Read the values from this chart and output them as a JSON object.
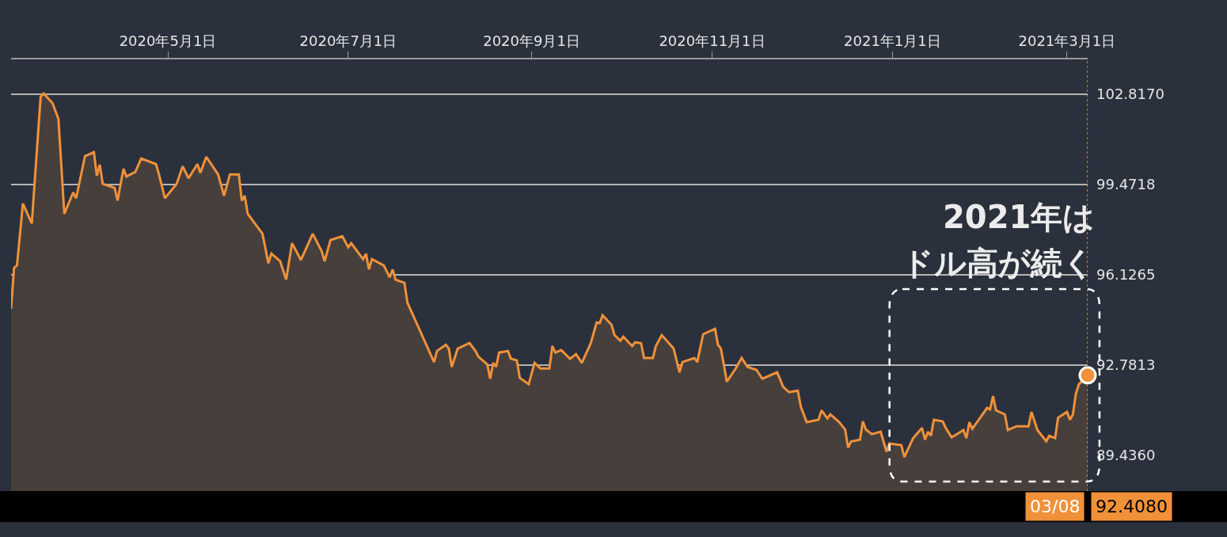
{
  "chart_data": {
    "type": "area",
    "x": [
      "2020-03-09",
      "2020-03-10",
      "2020-03-11",
      "2020-03-13",
      "2020-03-16",
      "2020-03-19",
      "2020-03-20",
      "2020-03-23",
      "2020-03-25",
      "2020-03-27",
      "2020-03-30",
      "2020-03-31",
      "2020-04-03",
      "2020-04-06",
      "2020-04-07",
      "2020-04-08",
      "2020-04-09",
      "2020-04-13",
      "2020-04-14",
      "2020-04-16",
      "2020-04-17",
      "2020-04-20",
      "2020-04-22",
      "2020-04-27",
      "2020-04-28",
      "2020-04-30",
      "2020-05-04",
      "2020-05-06",
      "2020-05-08",
      "2020-05-11",
      "2020-05-12",
      "2020-05-14",
      "2020-05-18",
      "2020-05-20",
      "2020-05-22",
      "2020-05-25",
      "2020-05-26",
      "2020-05-27",
      "2020-05-28",
      "2020-06-02",
      "2020-06-04",
      "2020-06-05",
      "2020-06-08",
      "2020-06-10",
      "2020-06-12",
      "2020-06-15",
      "2020-06-19",
      "2020-06-22",
      "2020-06-23",
      "2020-06-25",
      "2020-06-29",
      "2020-07-01",
      "2020-07-02",
      "2020-07-06",
      "2020-07-07",
      "2020-07-08",
      "2020-07-09",
      "2020-07-13",
      "2020-07-15",
      "2020-07-16",
      "2020-07-17",
      "2020-07-20",
      "2020-07-21",
      "2020-07-27",
      "2020-07-30",
      "2020-07-31",
      "2020-08-03",
      "2020-08-04",
      "2020-08-05",
      "2020-08-07",
      "2020-08-11",
      "2020-08-13",
      "2020-08-14",
      "2020-08-17",
      "2020-08-18",
      "2020-08-19",
      "2020-08-20",
      "2020-08-21",
      "2020-08-24",
      "2020-08-25",
      "2020-08-27",
      "2020-08-28",
      "2020-08-31",
      "2020-09-02",
      "2020-09-04",
      "2020-09-07",
      "2020-09-08",
      "2020-09-09",
      "2020-09-11",
      "2020-09-14",
      "2020-09-16",
      "2020-09-18",
      "2020-09-21",
      "2020-09-23",
      "2020-09-24",
      "2020-09-25",
      "2020-09-28",
      "2020-09-29",
      "2020-10-01",
      "2020-10-02",
      "2020-10-05",
      "2020-10-06",
      "2020-10-08",
      "2020-10-09",
      "2020-10-12",
      "2020-10-13",
      "2020-10-15",
      "2020-10-19",
      "2020-10-21",
      "2020-10-22",
      "2020-10-26",
      "2020-10-27",
      "2020-10-29",
      "2020-11-02",
      "2020-11-03",
      "2020-11-04",
      "2020-11-06",
      "2020-11-09",
      "2020-11-11",
      "2020-11-13",
      "2020-11-16",
      "2020-11-18",
      "2020-11-23",
      "2020-11-25",
      "2020-11-27",
      "2020-11-30",
      "2020-12-01",
      "2020-12-03",
      "2020-12-07",
      "2020-12-08",
      "2020-12-10",
      "2020-12-11",
      "2020-12-14",
      "2020-12-16",
      "2020-12-17",
      "2020-12-18",
      "2020-12-21",
      "2020-12-22",
      "2020-12-23",
      "2020-12-25",
      "2020-12-28",
      "2020-12-30",
      "2020-12-31",
      "2021-01-04",
      "2021-01-05",
      "2021-01-08",
      "2021-01-11",
      "2021-01-12",
      "2021-01-13",
      "2021-01-14",
      "2021-01-15",
      "2021-01-18",
      "2021-01-19",
      "2021-01-21",
      "2021-01-25",
      "2021-01-26",
      "2021-01-27",
      "2021-01-28",
      "2021-02-02",
      "2021-02-03",
      "2021-02-04",
      "2021-02-05",
      "2021-02-08",
      "2021-02-09",
      "2021-02-12",
      "2021-02-16",
      "2021-02-17",
      "2021-02-19",
      "2021-02-22",
      "2021-02-23",
      "2021-02-25",
      "2021-02-26",
      "2021-03-01",
      "2021-03-02",
      "2021-03-03",
      "2021-03-04",
      "2021-03-05",
      "2021-03-08"
    ],
    "series": [
      {
        "color": "#f0913a",
        "values": [
          94.87,
          96.39,
          96.48,
          98.77,
          98.03,
          102.73,
          102.85,
          102.49,
          101.91,
          98.39,
          99.18,
          98.97,
          100.53,
          100.67,
          99.8,
          100.21,
          99.5,
          99.35,
          98.88,
          100.06,
          99.77,
          99.94,
          100.44,
          100.23,
          99.85,
          98.97,
          99.5,
          100.15,
          99.71,
          100.23,
          99.91,
          100.5,
          99.85,
          99.06,
          99.85,
          99.85,
          98.88,
          99.06,
          98.39,
          97.65,
          96.56,
          96.92,
          96.63,
          95.95,
          97.3,
          96.68,
          97.65,
          97.01,
          96.63,
          97.42,
          97.56,
          97.15,
          97.3,
          96.71,
          96.91,
          96.33,
          96.71,
          96.48,
          96.04,
          96.33,
          95.95,
          95.83,
          95.1,
          93.63,
          92.9,
          93.31,
          93.54,
          93.4,
          92.72,
          93.4,
          93.6,
          93.31,
          93.1,
          92.81,
          92.28,
          92.87,
          92.72,
          93.25,
          93.31,
          93.02,
          92.96,
          92.31,
          92.08,
          92.87,
          92.66,
          92.66,
          93.49,
          93.25,
          93.34,
          93.02,
          93.19,
          92.87,
          93.6,
          94.37,
          94.34,
          94.63,
          94.28,
          93.9,
          93.69,
          93.84,
          93.49,
          93.63,
          93.6,
          93.05,
          93.05,
          93.49,
          93.9,
          93.4,
          92.52,
          92.9,
          93.05,
          92.9,
          93.93,
          94.13,
          93.54,
          93.4,
          92.17,
          92.66,
          93.05,
          92.72,
          92.61,
          92.28,
          92.52,
          91.99,
          91.78,
          91.84,
          91.25,
          90.67,
          90.76,
          91.11,
          90.81,
          90.96,
          90.67,
          90.4,
          89.73,
          89.96,
          90.02,
          90.7,
          90.4,
          90.23,
          90.32,
          89.58,
          89.88,
          89.82,
          89.38,
          90.08,
          90.46,
          90.02,
          90.32,
          90.17,
          90.76,
          90.7,
          90.46,
          90.11,
          90.38,
          90.08,
          90.67,
          90.43,
          91.2,
          91.14,
          91.64,
          91.11,
          90.96,
          90.38,
          90.52,
          90.52,
          91.05,
          90.38,
          89.96,
          90.17,
          90.08,
          90.84,
          91.05,
          90.76,
          90.96,
          91.72,
          92.07,
          92.408
        ]
      }
    ],
    "xlim": [
      "2020-03-09",
      "2021-03-08"
    ],
    "xticks": [
      {
        "value": "2020-05-01",
        "label": "2020年5月1日"
      },
      {
        "value": "2020-07-01",
        "label": "2020年7月1日"
      },
      {
        "value": "2020-09-01",
        "label": "2020年9月1日"
      },
      {
        "value": "2020-11-01",
        "label": "2020年11月1日"
      },
      {
        "value": "2021-01-01",
        "label": "2021年1月1日"
      },
      {
        "value": "2021-03-01",
        "label": "2021年3月1日"
      }
    ],
    "ylim": [
      88.12,
      104.11
    ],
    "yticks": [
      {
        "value": 89.436,
        "label": "89.4360"
      },
      {
        "value": 92.7813,
        "label": "92.7813"
      },
      {
        "value": 96.1265,
        "label": "96.1265"
      },
      {
        "value": 99.4718,
        "label": "99.4718"
      },
      {
        "value": 102.817,
        "label": "102.8170"
      }
    ],
    "grid": "y",
    "ref_lines": [
      {
        "axis": "x",
        "value": "2021-03-08",
        "color": "#f0913a",
        "line_style": "dotted"
      }
    ],
    "annotations": [
      "2021年は",
      "ドル高が続く",
      "03/08",
      "92.4080"
    ]
  }
}
